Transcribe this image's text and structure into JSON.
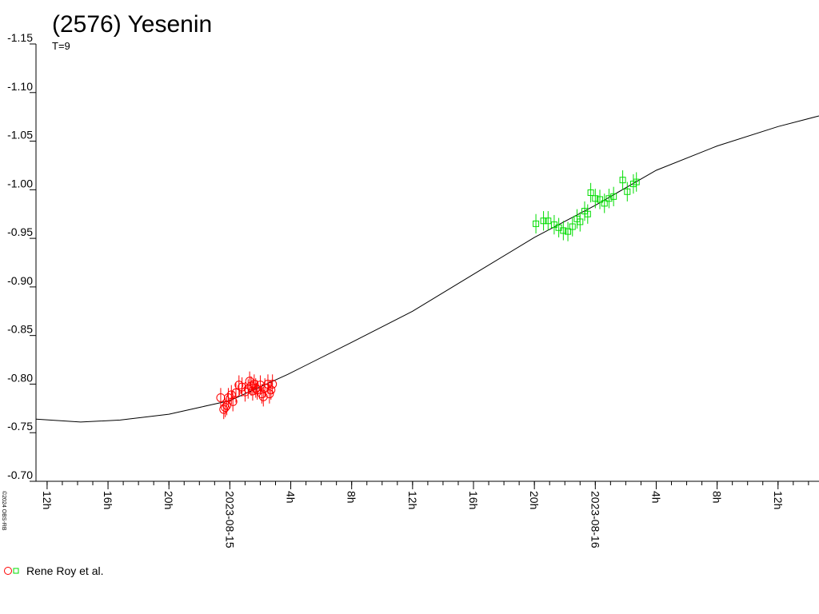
{
  "chart_data": {
    "type": "scatter",
    "title": "(2576) Yesenin",
    "subtitle": "T=9",
    "copyright": "©2024 OBS-RB",
    "observer": "Rene Roy et al.",
    "invert_y": true,
    "ylim": [
      -1.15,
      -0.7
    ],
    "yticks": [
      -1.15,
      {
        "value": -1.1,
        "label": "-1.10"
      },
      -1.05,
      {
        "value": -1.0,
        "label": "-1.00"
      },
      -0.95,
      {
        "value": -0.9,
        "label": "-0.90"
      },
      -0.85,
      {
        "value": -0.8,
        "label": "-0.80"
      },
      -0.75,
      {
        "value": -0.7,
        "label": "-0.70"
      }
    ],
    "xlim": [
      -12.73,
      38.69
    ],
    "xticks": [
      {
        "value": -12,
        "label": "12h"
      },
      {
        "value": -8,
        "label": "16h"
      },
      {
        "value": -4,
        "label": "20h"
      },
      {
        "value": 0,
        "label": "2023-08-15"
      },
      {
        "value": 4,
        "label": "4h"
      },
      {
        "value": 8,
        "label": "8h"
      },
      {
        "value": 12,
        "label": "12h"
      },
      {
        "value": 16,
        "label": "16h"
      },
      {
        "value": 20,
        "label": "20h"
      },
      {
        "value": 24,
        "label": "2023-08-16"
      },
      {
        "value": 28,
        "label": "4h"
      },
      {
        "value": 32,
        "label": "8h"
      },
      {
        "value": 36,
        "label": "12h"
      }
    ],
    "xminorticks": [
      -12,
      -11,
      -10,
      -9,
      -8,
      -7,
      -6,
      -5,
      -4,
      -3,
      -2,
      -1,
      0,
      1,
      2,
      3,
      4,
      5,
      6,
      7,
      8,
      9,
      10,
      11,
      12,
      13,
      14,
      15,
      16,
      17,
      18,
      19,
      20,
      21,
      22,
      23,
      24,
      25,
      26,
      27,
      28,
      29,
      30,
      31,
      32,
      33,
      34,
      35,
      36,
      37,
      38
    ],
    "curve": {
      "color": "#000000",
      "x": [
        -12.73,
        -9.8,
        -7.2,
        -4.0,
        0,
        3.8,
        8.0,
        12.0,
        16.0,
        20.0,
        24.0,
        28.0,
        32.0,
        36.0,
        38.69
      ],
      "values": [
        -0.764,
        -0.761,
        -0.763,
        -0.769,
        -0.783,
        -0.81,
        -0.843,
        -0.875,
        -0.913,
        -0.951,
        -0.984,
        -1.02,
        -1.045,
        -1.065,
        -1.076
      ]
    },
    "series": [
      {
        "color": "#ff0000",
        "marker": "circle",
        "error": 0.01,
        "x": [
          -0.6,
          -0.4,
          -0.3,
          -0.2,
          -0.1,
          0.1,
          0.2,
          0.4,
          0.6,
          0.8,
          1.0,
          1.2,
          1.3,
          1.4,
          1.5,
          1.6,
          1.7,
          1.8,
          2.0,
          2.1,
          2.2,
          2.3,
          2.5,
          2.6,
          2.7,
          2.8
        ],
        "values": [
          -0.786,
          -0.774,
          -0.776,
          -0.778,
          -0.786,
          -0.789,
          -0.782,
          -0.791,
          -0.799,
          -0.797,
          -0.792,
          -0.795,
          -0.803,
          -0.798,
          -0.793,
          -0.8,
          -0.796,
          -0.794,
          -0.799,
          -0.79,
          -0.787,
          -0.796,
          -0.8,
          -0.79,
          -0.794,
          -0.8
        ]
      },
      {
        "color": "#00dd00",
        "marker": "square",
        "error": 0.01,
        "x": [
          20.1,
          20.6,
          20.9,
          21.3,
          21.6,
          21.9,
          22.2,
          22.5,
          22.8,
          23.0,
          23.3,
          23.5,
          23.7,
          24.0,
          24.3,
          24.6,
          24.9,
          25.2,
          25.8,
          26.1,
          26.5,
          26.7
        ],
        "values": [
          -0.965,
          -0.968,
          -0.968,
          -0.964,
          -0.961,
          -0.958,
          -0.957,
          -0.962,
          -0.97,
          -0.967,
          -0.978,
          -0.975,
          -0.997,
          -0.991,
          -0.99,
          -0.986,
          -0.991,
          -0.993,
          -1.01,
          -0.998,
          -1.006,
          -1.008
        ]
      }
    ]
  }
}
